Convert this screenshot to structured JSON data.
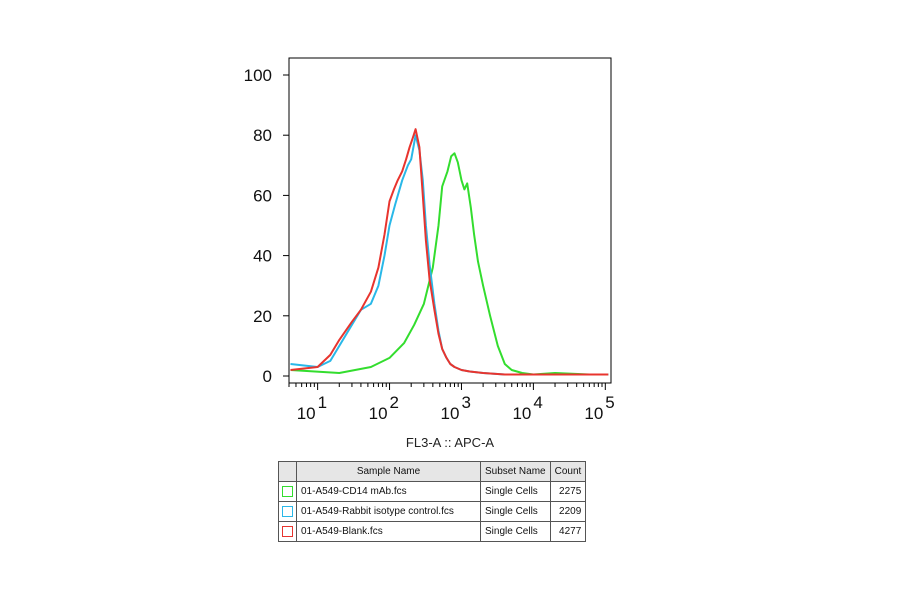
{
  "chart_data": {
    "type": "line",
    "title": "",
    "xlabel": "FL3-A :: APC-A",
    "ylabel": "",
    "x_scale": "log",
    "xlim": [
      4,
      120000
    ],
    "ylim": [
      0,
      100
    ],
    "y_ticks": [
      0,
      20,
      40,
      60,
      80,
      100
    ],
    "x_tick_labels": [
      {
        "base": "10",
        "exp": "1"
      },
      {
        "base": "10",
        "exp": "2"
      },
      {
        "base": "10",
        "exp": "3"
      },
      {
        "base": "10",
        "exp": "4"
      },
      {
        "base": "10",
        "exp": "5"
      }
    ],
    "grid": false,
    "series": [
      {
        "name": "01-A549-CD14 mAb.fcs",
        "color": "#33dd2e",
        "x": [
          4.2,
          20,
          55,
          100,
          160,
          220,
          300,
          400,
          480,
          540,
          640,
          720,
          800,
          890,
          1000,
          1100,
          1200,
          1350,
          1500,
          1700,
          2000,
          2500,
          3200,
          4000,
          5000,
          7000,
          10000,
          20000,
          60000,
          110000
        ],
        "y": [
          2,
          1,
          3,
          6,
          11,
          17,
          24,
          36,
          50,
          63,
          68,
          73,
          74,
          71,
          65,
          62,
          64,
          56,
          47,
          38,
          30,
          20,
          10,
          4,
          2,
          1,
          0.5,
          1,
          0.5,
          0.5
        ]
      },
      {
        "name": "01-A549-Rabbit isotype control.fcs",
        "color": "#29b8e8",
        "x": [
          4.2,
          10,
          15,
          20,
          30,
          40,
          55,
          70,
          85,
          100,
          120,
          150,
          180,
          200,
          230,
          260,
          290,
          320,
          360,
          420,
          480,
          540,
          620,
          700,
          800,
          1000,
          1300,
          2000,
          4000,
          8000,
          20000,
          110000
        ],
        "y": [
          4,
          3,
          5,
          10,
          17,
          22,
          24,
          30,
          40,
          50,
          57,
          65,
          70,
          72,
          80,
          75,
          65,
          50,
          37,
          24,
          15,
          9,
          6,
          4,
          3,
          2,
          1.5,
          1,
          0.5,
          0.5,
          0.5,
          0.5
        ]
      },
      {
        "name": "01-A549-Blank.fcs",
        "color": "#e8342e",
        "x": [
          4.2,
          10,
          15,
          20,
          30,
          40,
          55,
          70,
          85,
          100,
          115,
          130,
          150,
          170,
          190,
          210,
          230,
          260,
          290,
          320,
          360,
          420,
          480,
          540,
          620,
          700,
          800,
          1000,
          1300,
          2000,
          4000,
          110000
        ],
        "y": [
          2,
          3,
          7,
          12,
          18,
          22,
          28,
          36,
          47,
          58,
          62,
          65,
          68,
          72,
          76,
          79,
          82,
          76,
          60,
          45,
          32,
          22,
          14,
          9,
          6,
          4,
          3,
          2,
          1.5,
          1,
          0.5,
          0.5
        ]
      }
    ]
  },
  "legend": {
    "headers": {
      "sample": "Sample Name",
      "subset": "Subset Name",
      "count": "Count"
    },
    "rows": [
      {
        "color": "#33dd2e",
        "sample": "01-A549-CD14 mAb.fcs",
        "subset": "Single Cells",
        "count": "2275"
      },
      {
        "color": "#29b8e8",
        "sample": "01-A549-Rabbit isotype control.fcs",
        "subset": "Single Cells",
        "count": "2209"
      },
      {
        "color": "#e8342e",
        "sample": "01-A549-Blank.fcs",
        "subset": "Single Cells",
        "count": "4277"
      }
    ]
  }
}
